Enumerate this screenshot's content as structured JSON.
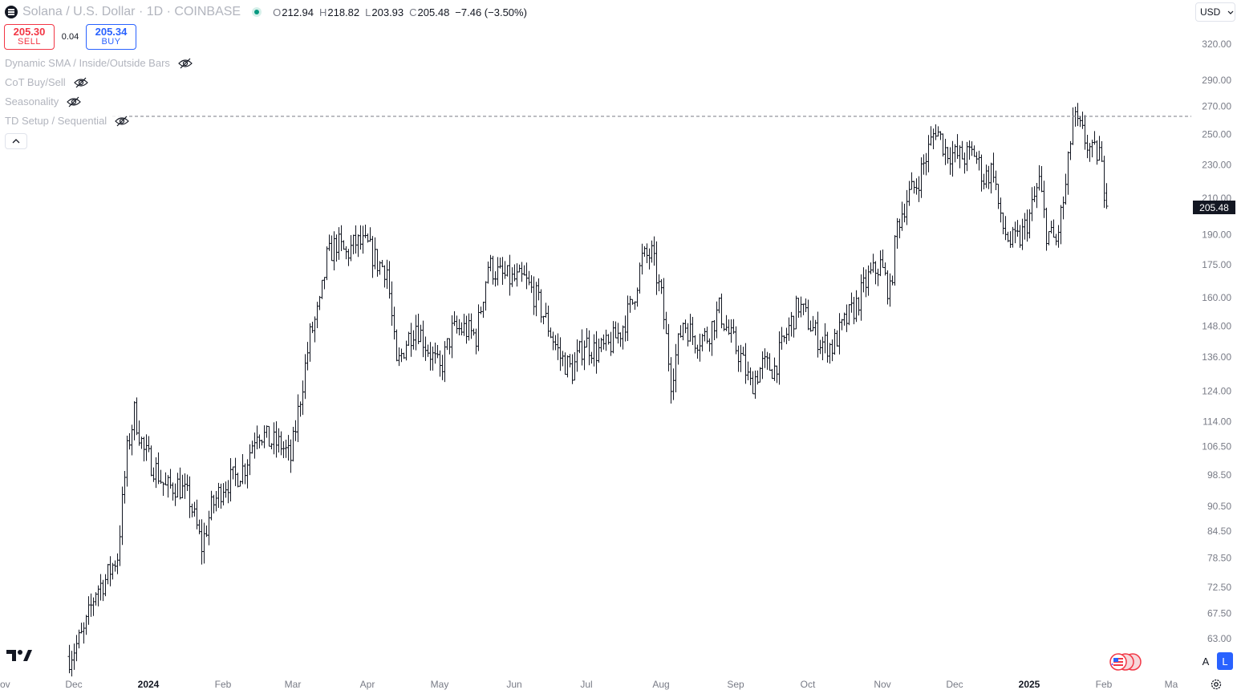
{
  "header": {
    "symbol_title": "Solana / U.S. Dollar · 1D · COINBASE",
    "ohlc": {
      "open_key": "O",
      "open": "212.94",
      "high_key": "H",
      "high": "218.82",
      "low_key": "L",
      "low": "203.93",
      "close_key": "C",
      "close": "205.48",
      "change": "−7.46 (−3.50%)"
    }
  },
  "trade": {
    "sell_price": "205.30",
    "sell_label": "SELL",
    "spread": "0.04",
    "buy_price": "205.34",
    "buy_label": "BUY"
  },
  "indicators": [
    "Dynamic SMA / Inside/Outside Bars",
    "CoT Buy/Sell",
    "Seasonality",
    "TD Setup / Sequential"
  ],
  "currency": "USD",
  "last_price_label": "205.48",
  "buttons": {
    "auto_scale": "A",
    "log_scale": "L"
  },
  "colors": {
    "bars": "#131722",
    "sell": "#f23645",
    "buy": "#2962ff",
    "live_dot": "#089981",
    "axis_text": "#787b86"
  },
  "icons": [
    "menu-logo-icon",
    "live-dot-icon",
    "eye-hidden-icon",
    "chevron-up-icon",
    "chevron-down-icon",
    "tradingview-logo-icon",
    "flag-icon",
    "settings-icon"
  ],
  "chart_data": {
    "type": "ohlc-bar",
    "symbol": "SOL/USD",
    "interval": "1D",
    "y_scale": "log",
    "y_ticks": [
      "320.00",
      "290.00",
      "270.00",
      "250.00",
      "230.00",
      "210.00",
      "190.00",
      "175.00",
      "160.00",
      "148.00",
      "136.00",
      "124.00",
      "114.00",
      "106.50",
      "98.50",
      "90.50",
      "84.50",
      "78.50",
      "72.50",
      "67.50",
      "63.00"
    ],
    "x_ticks": [
      "Nov",
      "Dec",
      "2024",
      "Feb",
      "Mar",
      "Apr",
      "May",
      "Jun",
      "Jul",
      "Aug",
      "Sep",
      "Oct",
      "Nov",
      "Dec",
      "2025",
      "Feb",
      "Ma"
    ],
    "dashed_level": 263,
    "daily_closes": [
      {
        "date": "2023-11-29",
        "close": 60
      },
      {
        "date": "2023-12-05",
        "close": 64
      },
      {
        "date": "2023-12-10",
        "close": 72
      },
      {
        "date": "2023-12-14",
        "close": 74
      },
      {
        "date": "2023-12-19",
        "close": 79
      },
      {
        "date": "2023-12-23",
        "close": 105
      },
      {
        "date": "2023-12-26",
        "close": 117
      },
      {
        "date": "2023-12-30",
        "close": 105
      },
      {
        "date": "2024-01-04",
        "close": 100
      },
      {
        "date": "2024-01-08",
        "close": 95
      },
      {
        "date": "2024-01-13",
        "close": 96
      },
      {
        "date": "2024-01-18",
        "close": 92
      },
      {
        "date": "2024-01-23",
        "close": 81
      },
      {
        "date": "2024-01-27",
        "close": 90
      },
      {
        "date": "2024-02-01",
        "close": 96
      },
      {
        "date": "2024-02-06",
        "close": 98
      },
      {
        "date": "2024-02-10",
        "close": 101
      },
      {
        "date": "2024-02-15",
        "close": 112
      },
      {
        "date": "2024-02-20",
        "close": 108
      },
      {
        "date": "2024-02-25",
        "close": 107
      },
      {
        "date": "2024-02-29",
        "close": 103
      },
      {
        "date": "2024-03-04",
        "close": 122
      },
      {
        "date": "2024-03-08",
        "close": 144
      },
      {
        "date": "2024-03-12",
        "close": 156
      },
      {
        "date": "2024-03-15",
        "close": 178
      },
      {
        "date": "2024-03-19",
        "close": 186
      },
      {
        "date": "2024-03-23",
        "close": 180
      },
      {
        "date": "2024-03-27",
        "close": 186
      },
      {
        "date": "2024-04-01",
        "close": 184
      },
      {
        "date": "2024-04-05",
        "close": 176
      },
      {
        "date": "2024-04-09",
        "close": 173
      },
      {
        "date": "2024-04-13",
        "close": 132
      },
      {
        "date": "2024-04-17",
        "close": 142
      },
      {
        "date": "2024-04-21",
        "close": 149
      },
      {
        "date": "2024-04-25",
        "close": 141
      },
      {
        "date": "2024-05-01",
        "close": 131
      },
      {
        "date": "2024-05-06",
        "close": 146
      },
      {
        "date": "2024-05-11",
        "close": 147
      },
      {
        "date": "2024-05-16",
        "close": 144
      },
      {
        "date": "2024-05-21",
        "close": 175
      },
      {
        "date": "2024-05-26",
        "close": 170
      },
      {
        "date": "2024-05-31",
        "close": 168
      },
      {
        "date": "2024-06-05",
        "close": 168
      },
      {
        "date": "2024-06-10",
        "close": 160
      },
      {
        "date": "2024-06-15",
        "close": 148
      },
      {
        "date": "2024-06-20",
        "close": 136
      },
      {
        "date": "2024-06-25",
        "close": 131
      },
      {
        "date": "2024-06-30",
        "close": 142
      },
      {
        "date": "2024-07-05",
        "close": 138
      },
      {
        "date": "2024-07-10",
        "close": 140
      },
      {
        "date": "2024-07-15",
        "close": 146
      },
      {
        "date": "2024-07-20",
        "close": 158
      },
      {
        "date": "2024-07-24",
        "close": 178
      },
      {
        "date": "2024-07-28",
        "close": 180
      },
      {
        "date": "2024-08-01",
        "close": 160
      },
      {
        "date": "2024-08-05",
        "close": 128
      },
      {
        "date": "2024-08-10",
        "close": 150
      },
      {
        "date": "2024-08-15",
        "close": 143
      },
      {
        "date": "2024-08-20",
        "close": 144
      },
      {
        "date": "2024-08-25",
        "close": 155
      },
      {
        "date": "2024-08-29",
        "close": 145
      },
      {
        "date": "2024-09-03",
        "close": 136
      },
      {
        "date": "2024-09-07",
        "close": 126
      },
      {
        "date": "2024-09-12",
        "close": 133
      },
      {
        "date": "2024-09-17",
        "close": 132
      },
      {
        "date": "2024-09-22",
        "close": 145
      },
      {
        "date": "2024-09-27",
        "close": 157
      },
      {
        "date": "2024-10-01",
        "close": 150
      },
      {
        "date": "2024-10-06",
        "close": 142
      },
      {
        "date": "2024-10-11",
        "close": 140
      },
      {
        "date": "2024-10-16",
        "close": 149
      },
      {
        "date": "2024-10-21",
        "close": 157
      },
      {
        "date": "2024-10-26",
        "close": 169
      },
      {
        "date": "2024-10-31",
        "close": 175
      },
      {
        "date": "2024-11-04",
        "close": 162
      },
      {
        "date": "2024-11-07",
        "close": 195
      },
      {
        "date": "2024-11-11",
        "close": 210
      },
      {
        "date": "2024-11-15",
        "close": 218
      },
      {
        "date": "2024-11-19",
        "close": 235
      },
      {
        "date": "2024-11-23",
        "close": 255
      },
      {
        "date": "2024-11-27",
        "close": 240
      },
      {
        "date": "2024-12-01",
        "close": 236
      },
      {
        "date": "2024-12-05",
        "close": 235
      },
      {
        "date": "2024-12-09",
        "close": 238
      },
      {
        "date": "2024-12-13",
        "close": 222
      },
      {
        "date": "2024-12-17",
        "close": 228
      },
      {
        "date": "2024-12-20",
        "close": 196
      },
      {
        "date": "2024-12-24",
        "close": 186
      },
      {
        "date": "2024-12-28",
        "close": 188
      },
      {
        "date": "2025-01-01",
        "close": 200
      },
      {
        "date": "2025-01-05",
        "close": 220
      },
      {
        "date": "2025-01-08",
        "close": 192
      },
      {
        "date": "2025-01-12",
        "close": 186
      },
      {
        "date": "2025-01-16",
        "close": 216
      },
      {
        "date": "2025-01-19",
        "close": 262
      },
      {
        "date": "2025-01-23",
        "close": 250
      },
      {
        "date": "2025-01-27",
        "close": 237
      },
      {
        "date": "2025-01-30",
        "close": 238
      },
      {
        "date": "2025-02-02",
        "close": 205.48
      }
    ]
  }
}
